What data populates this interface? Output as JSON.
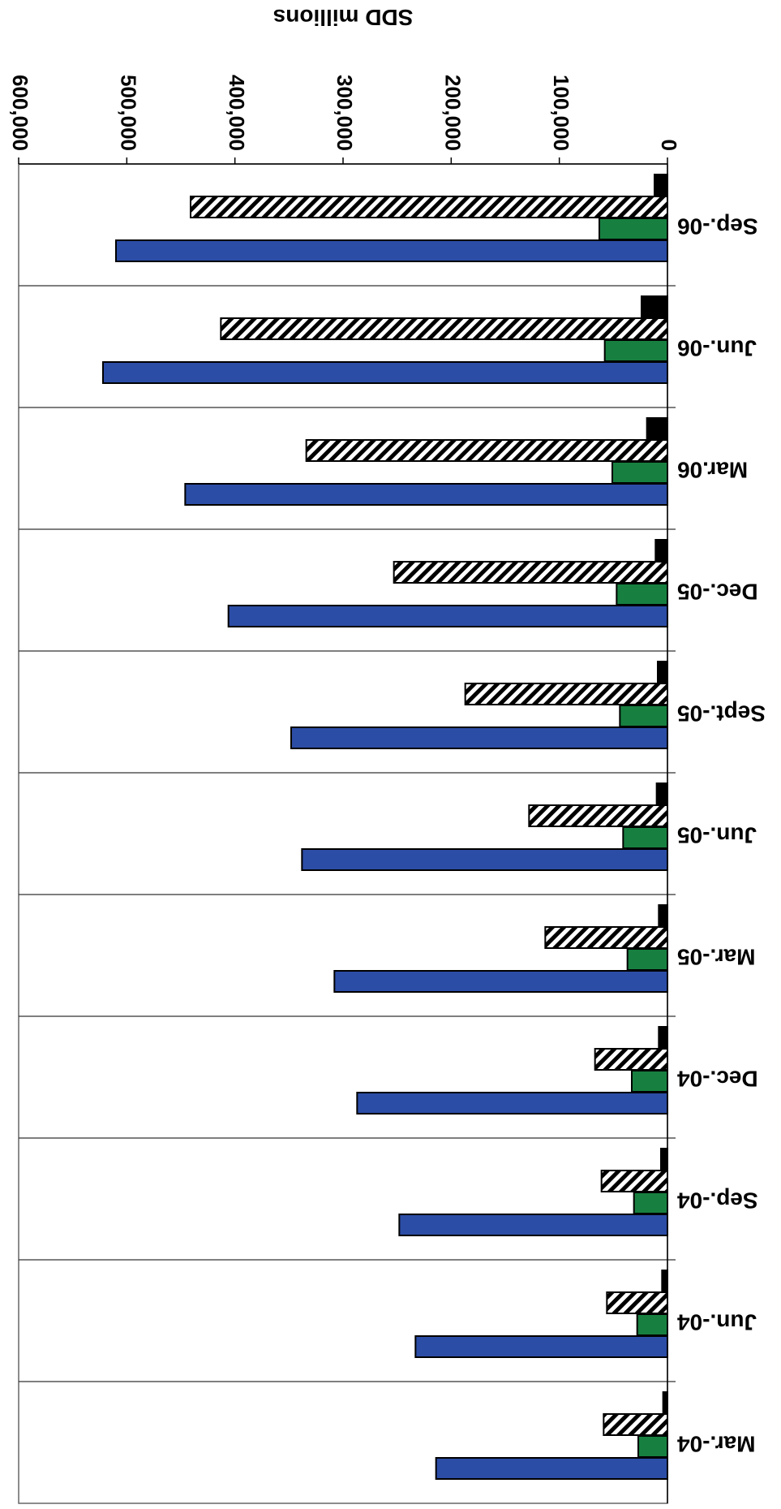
{
  "chart_data": {
    "type": "bar",
    "orientation": "horizontal",
    "rotated_180": true,
    "categories": [
      "Mar.-04",
      "Jun.-04",
      "Sep.-04",
      "Dec.-04",
      "Mar.-05",
      "Jun.-05",
      "Sept.-05",
      "Dec.-05",
      "Mar.06",
      "Jun.-06",
      "Sep.-06"
    ],
    "series": [
      {
        "pattern": "solid",
        "color": "#2c4da6",
        "values": [
          214000,
          233000,
          248000,
          287000,
          308000,
          338000,
          348000,
          406000,
          446000,
          522000,
          510000
        ]
      },
      {
        "pattern": "solid",
        "color": "#178040",
        "values": [
          27000,
          28000,
          31000,
          33000,
          37000,
          41000,
          44000,
          47000,
          51000,
          58000,
          63000
        ]
      },
      {
        "pattern": "hatched",
        "color": "#ffffff",
        "values": [
          59000,
          56000,
          61000,
          67000,
          113000,
          128000,
          187000,
          253000,
          334000,
          413000,
          441000
        ]
      },
      {
        "pattern": "solid",
        "color": "#000000",
        "values": [
          4000,
          5000,
          6000,
          8000,
          8000,
          10000,
          9000,
          11000,
          19000,
          24000,
          12000
        ]
      }
    ],
    "value_axis": {
      "label": "SDD millions",
      "range": [
        0,
        600000
      ],
      "ticks": [
        "0",
        "100,000",
        "200,000",
        "300,000",
        "400,000",
        "500,000",
        "600,000"
      ]
    },
    "grid": "category separators",
    "legend": "none"
  }
}
